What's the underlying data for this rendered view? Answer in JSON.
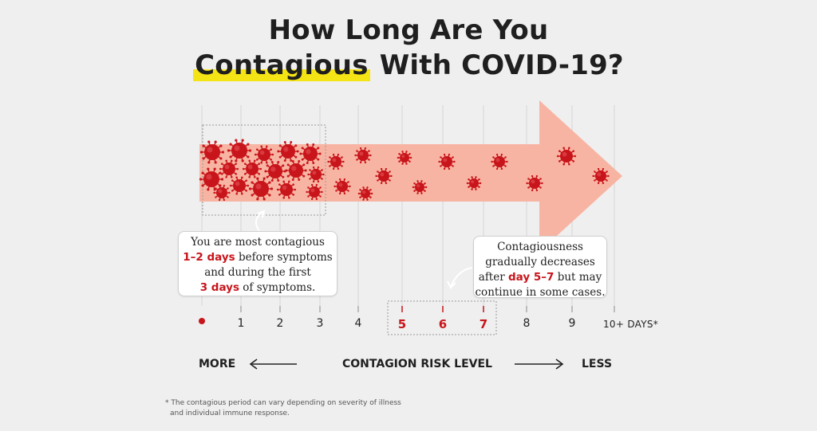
{
  "title": {
    "line1": "How Long Are You",
    "highlight": "Contagious",
    "line2_rest": "With COVID-19?"
  },
  "callouts": {
    "left": {
      "line1": "You are most contagious",
      "bold1": "1–2 days",
      "after1": "before symptoms",
      "line3": "and during the first",
      "bold2": "3 days",
      "after2": "of symptoms."
    },
    "right": {
      "line1": "Contagiousness",
      "line2": "gradually decreases",
      "before": "after",
      "bold": "day 5–7",
      "after": "but may",
      "line4": "continue in some cases."
    }
  },
  "timeline": {
    "ticks": [
      "1",
      "2",
      "3",
      "4",
      "5",
      "6",
      "7",
      "8",
      "9"
    ],
    "highlighted_ticks": [
      "5",
      "6",
      "7"
    ],
    "end_label": "10+ DAYS*",
    "start_marker": "red-dot"
  },
  "risk": {
    "more": "MORE",
    "title": "CONTAGION RISK LEVEL",
    "less": "LESS"
  },
  "footnote": {
    "line1": "* The contagious period can vary depending on severity of illness",
    "line2": "and individual immune response."
  },
  "colors": {
    "arrow": "#f8b4a2",
    "virus": "#c8151b",
    "highlight": "#f5e415",
    "accent_text": "#c8151b",
    "background": "#efefef"
  }
}
